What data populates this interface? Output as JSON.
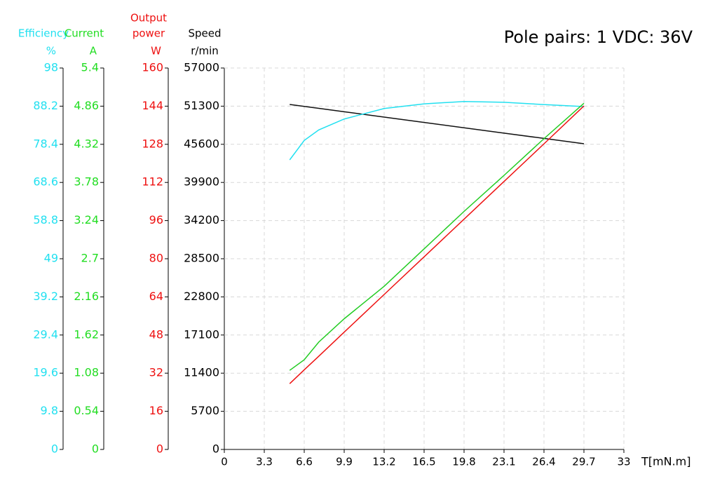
{
  "chart_data": {
    "type": "line",
    "title": "Pole pairs: 1   VDC: 36V",
    "x_label": "T[mN.m]",
    "xlim": [
      0,
      33
    ],
    "xticks": [
      0,
      3.3,
      6.6,
      9.9,
      13.2,
      16.5,
      19.8,
      23.1,
      26.4,
      29.7,
      33
    ],
    "grid": true,
    "x": [
      5.4,
      6.6,
      7.8,
      9.9,
      13.2,
      16.5,
      19.8,
      23.1,
      26.4,
      29.7
    ],
    "y_axes": [
      {
        "title_lines": [
          "Efficiency"
        ],
        "unit": "%",
        "color": "#22e0f0",
        "ylim": [
          0,
          98
        ],
        "yticks": [
          0,
          9.8,
          19.6,
          29.4,
          39.2,
          49,
          58.8,
          68.6,
          78.4,
          88.2,
          98
        ]
      },
      {
        "title_lines": [
          "Current"
        ],
        "unit": "A",
        "color": "#22dd22",
        "ylim": [
          0,
          5.4
        ],
        "yticks": [
          0,
          0.54,
          1.08,
          1.62,
          2.16,
          2.7,
          3.24,
          3.78,
          4.32,
          4.86,
          5.4
        ]
      },
      {
        "title_lines": [
          "Output",
          "power"
        ],
        "unit": "W",
        "color": "#ee1111",
        "ylim": [
          0,
          160
        ],
        "yticks": [
          0,
          16,
          32,
          48,
          64,
          80,
          96,
          112,
          128,
          144,
          160
        ]
      },
      {
        "title_lines": [
          "Speed"
        ],
        "unit": "r/min",
        "color": "#000000",
        "ylim": [
          0,
          57000
        ],
        "yticks": [
          0,
          5700,
          11400,
          17100,
          22800,
          28500,
          34200,
          39900,
          45600,
          51300,
          57000
        ]
      }
    ],
    "series": [
      {
        "axis": 3,
        "color": "#111111",
        "values": [
          51550,
          51260,
          50970,
          50460,
          49670,
          48870,
          48070,
          47270,
          46480,
          45680
        ]
      },
      {
        "axis": 0,
        "color": "#22e0f0",
        "values": [
          74.4,
          79.4,
          82.1,
          84.9,
          87.6,
          88.8,
          89.4,
          89.2,
          88.6,
          88.1
        ]
      },
      {
        "axis": 1,
        "color": "#22cc22",
        "values": [
          1.12,
          1.27,
          1.52,
          1.85,
          2.31,
          2.84,
          3.37,
          3.88,
          4.4,
          4.9
        ]
      },
      {
        "axis": 2,
        "color": "#ee1111",
        "values": [
          27.6,
          33.4,
          39.1,
          49.2,
          65.0,
          80.8,
          96.6,
          112.4,
          128.2,
          144.1
        ]
      }
    ]
  }
}
